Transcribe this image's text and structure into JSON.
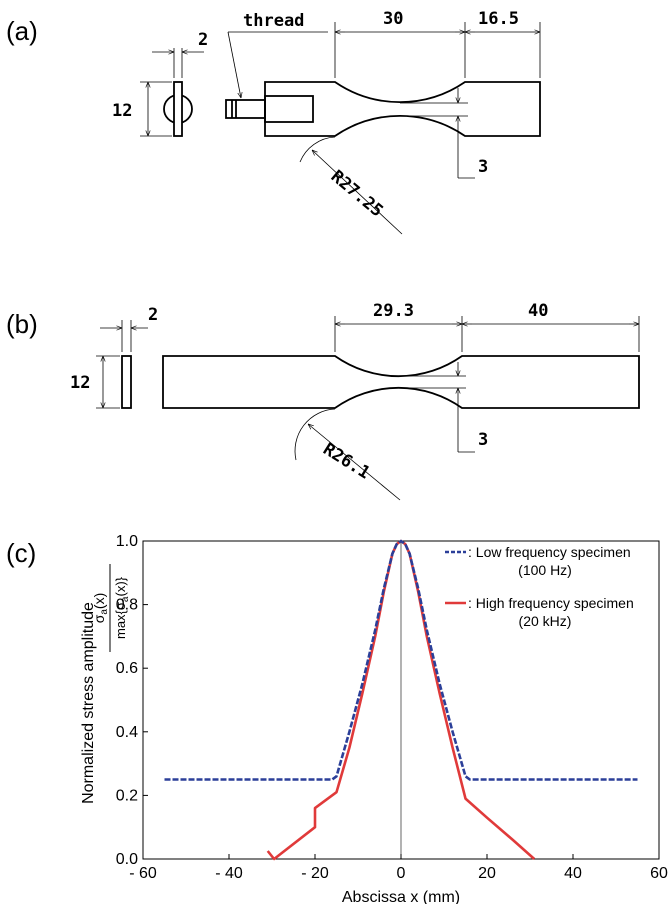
{
  "panels": {
    "a": {
      "label": "(a)",
      "dims": {
        "thickness": "2",
        "width": "12",
        "thread": "thread",
        "gauge": "30",
        "grip": "16.5",
        "min_width": "3",
        "radius": "R27.25"
      }
    },
    "b": {
      "label": "(b)",
      "dims": {
        "thickness": "2",
        "width": "12",
        "gauge": "29.3",
        "grip": "40",
        "min_width": "3",
        "radius": "R26.1"
      }
    },
    "c": {
      "label": "(c)"
    }
  },
  "chart_data": {
    "type": "line",
    "xlabel": "Abscissa x (mm)",
    "ylabel": "Normalized stress amplitude",
    "ylabel_formula_num": "σ",
    "ylabel_formula_num_sub": "a",
    "ylabel_formula_num_tail": "(x)",
    "ylabel_formula_den": "max{σ",
    "ylabel_formula_den_sub": "a",
    "ylabel_formula_den_tail": "(x)}",
    "xlim": [
      -60,
      60
    ],
    "ylim": [
      0,
      1.0
    ],
    "xticks": [
      -60,
      -40,
      -20,
      0,
      20,
      40,
      60
    ],
    "xtick_labels": [
      "- 60",
      "- 40",
      "- 20",
      "0",
      "20",
      "40",
      "60"
    ],
    "yticks": [
      0.0,
      0.2,
      0.4,
      0.6,
      0.8,
      1.0
    ],
    "ytick_labels": [
      "0.0",
      "0.2",
      "0.4",
      "0.6",
      "0.8",
      "1.0"
    ],
    "legend_position": "top-right",
    "series": [
      {
        "name": ": Low frequency specimen",
        "subname": "(100 Hz)",
        "color": "#2b3f99",
        "style": "dashed",
        "x": [
          -55,
          -16,
          -15,
          -12,
          -9,
          -6,
          -4,
          -2,
          -1,
          0,
          1,
          2,
          4,
          6,
          9,
          12,
          15,
          16,
          55
        ],
        "y": [
          0.25,
          0.25,
          0.26,
          0.4,
          0.55,
          0.72,
          0.85,
          0.96,
          0.99,
          1.0,
          0.99,
          0.96,
          0.85,
          0.72,
          0.55,
          0.4,
          0.26,
          0.25,
          0.25
        ]
      },
      {
        "name": ": High frequency specimen",
        "subname": "(20 kHz)",
        "color": "#e03a3a",
        "style": "solid",
        "x": [
          -31,
          -29.5,
          -20,
          -20,
          -15,
          -12,
          -9,
          -6,
          -4,
          -2,
          -1,
          0,
          1,
          2,
          4,
          6,
          9,
          12,
          15,
          20,
          26,
          31
        ],
        "y": [
          0.025,
          0.0,
          0.1,
          0.16,
          0.21,
          0.35,
          0.52,
          0.7,
          0.84,
          0.96,
          0.99,
          1.0,
          0.99,
          0.96,
          0.84,
          0.7,
          0.52,
          0.35,
          0.19,
          0.13,
          0.06,
          0.0
        ]
      }
    ]
  }
}
